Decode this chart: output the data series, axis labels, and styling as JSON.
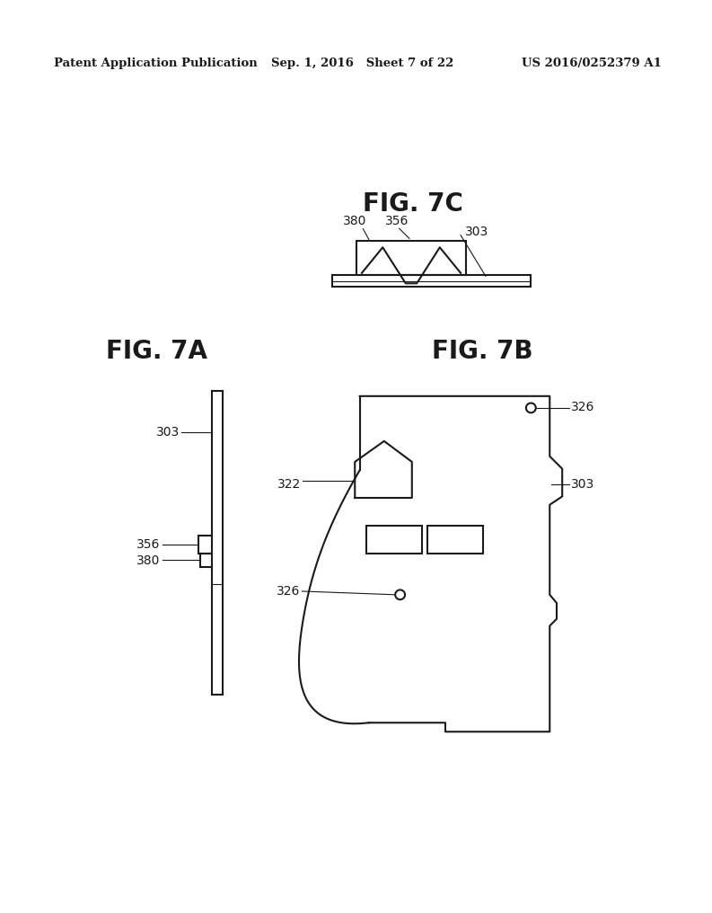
{
  "bg_color": "#ffffff",
  "line_color": "#1a1a1a",
  "header_left": "Patent Application Publication",
  "header_mid": "Sep. 1, 2016   Sheet 7 of 22",
  "header_right": "US 2016/0252379 A1",
  "fig7c_title": "FIG. 7C",
  "fig7a_title": "FIG. 7A",
  "fig7b_title": "FIG. 7B",
  "label_380": "380",
  "label_356": "356",
  "label_303": "303",
  "label_322": "322",
  "label_326": "326"
}
